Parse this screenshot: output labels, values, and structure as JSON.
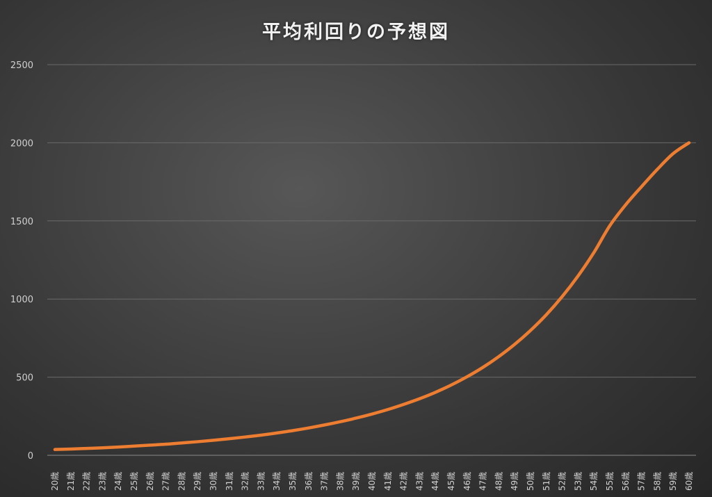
{
  "chart_data": {
    "type": "line",
    "title": "平均利回りの予想図",
    "xlabel": "",
    "ylabel": "",
    "ylim": [
      0,
      2500
    ],
    "yticks": [
      "0",
      "500",
      "1000",
      "1500",
      "2000",
      "2500"
    ],
    "grid": true,
    "legend": "none",
    "categories": [
      "20歳",
      "21歳",
      "22歳",
      "23歳",
      "24歳",
      "25歳",
      "26歳",
      "27歳",
      "28歳",
      "29歳",
      "30歳",
      "31歳",
      "32歳",
      "33歳",
      "34歳",
      "35歳",
      "36歳",
      "37歳",
      "38歳",
      "39歳",
      "40歳",
      "41歳",
      "42歳",
      "43歳",
      "44歳",
      "45歳",
      "46歳",
      "47歳",
      "48歳",
      "49歳",
      "50歳",
      "51歳",
      "52歳",
      "53歳",
      "54歳",
      "55歳",
      "56歳",
      "57歳",
      "58歳",
      "59歳",
      "60歳"
    ],
    "series": [
      {
        "name": "",
        "color": "#ed7d31",
        "values": [
          37,
          40,
          44,
          48,
          53,
          59,
          65,
          71,
          79,
          87,
          96,
          106,
          117,
          129,
          143,
          158,
          175,
          194,
          215,
          238,
          264,
          293,
          326,
          362,
          403,
          450,
          503,
          563,
          632,
          710,
          799,
          900,
          1016,
          1148,
          1298,
          1469,
          1603,
          1719,
          1830,
          1931,
          2000
        ]
      }
    ],
    "colors": {
      "background": "#3d3d3d",
      "gridline": "#6a6a6a",
      "line": "#ed7d31",
      "text": "#d0d0d0"
    }
  }
}
